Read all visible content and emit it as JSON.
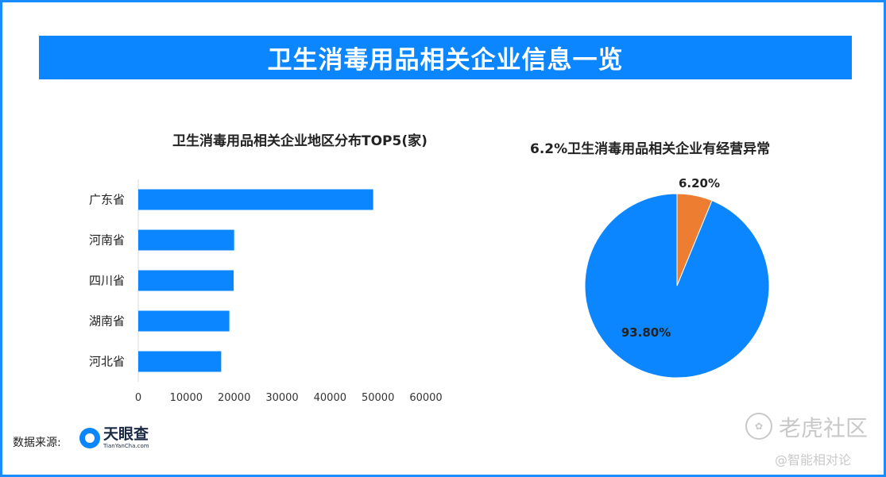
{
  "header": {
    "title": "卫生消毒用品相关企业信息一览"
  },
  "chart_data": [
    {
      "type": "bar",
      "orientation": "horizontal",
      "title": "卫生消毒用品相关企业地区分布TOP5(家)",
      "categories": [
        "广东省",
        "河南省",
        "四川省",
        "湖南省",
        "河北省"
      ],
      "values": [
        49000,
        20000,
        19900,
        19000,
        17300
      ],
      "xlim": [
        0,
        60000
      ],
      "xticks": [
        "0",
        "10000",
        "20000",
        "30000",
        "40000",
        "50000",
        "60000"
      ],
      "color": "#0b86ff",
      "grid": false
    },
    {
      "type": "pie",
      "title": "6.2%卫生消毒用品相关企业有经营异常",
      "slices": [
        {
          "label": "6.20%",
          "value": 6.2,
          "color": "#ed7d31"
        },
        {
          "label": "93.80%",
          "value": 93.8,
          "color": "#0b86ff"
        }
      ]
    }
  ],
  "footer": {
    "source_label": "数据来源:",
    "logo_cn": "天眼查",
    "logo_en": "TianYanCha.com"
  },
  "watermark": {
    "main": "老虎社区",
    "sub": "@智能相对论",
    "icon": "paw-icon"
  }
}
